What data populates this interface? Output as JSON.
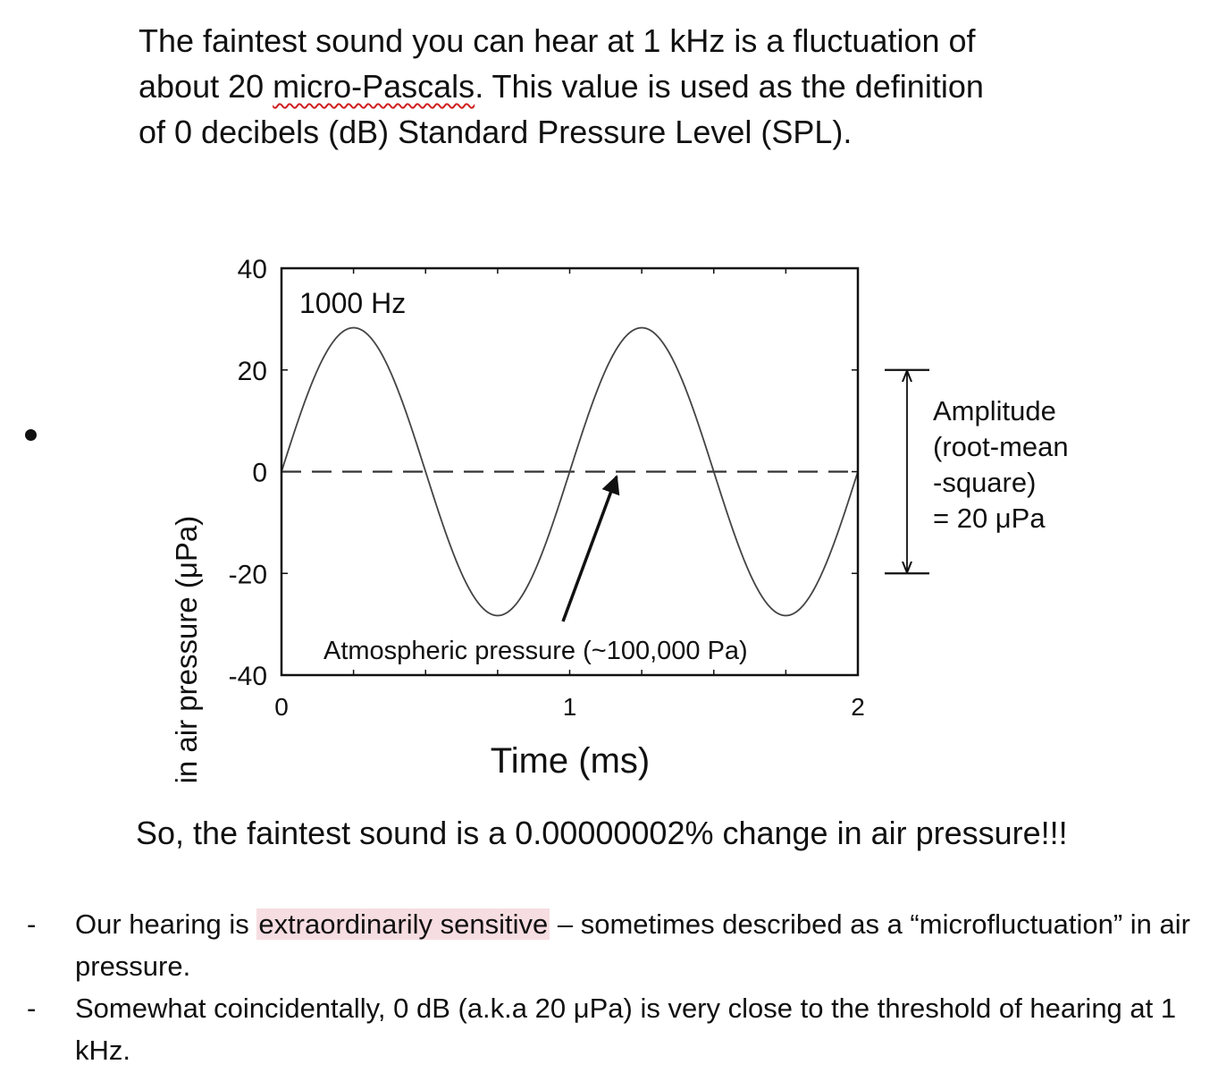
{
  "intro": {
    "line1": "The faintest sound you can hear at 1 kHz is a fluctuation of",
    "line2_a": "about 20 ",
    "line2_flagged": "micro-Pascals",
    "line2_b": ". This value is used as the definition",
    "line3": "of 0 decibels (dB) Standard Pressure Level (SPL)."
  },
  "chart_data": {
    "type": "line",
    "title": "",
    "xlabel": "Time (ms)",
    "ylabel": "Devaition in air pressure (μPa)",
    "xlim": [
      0,
      2
    ],
    "ylim": [
      -40,
      40
    ],
    "x_ticks": [
      "0",
      "1",
      "2"
    ],
    "y_ticks": [
      "40",
      "20",
      "0",
      "-20",
      "-40"
    ],
    "y_tick_values": [
      40,
      20,
      0,
      -20,
      -40
    ],
    "x_tick_values": [
      0,
      1,
      2
    ],
    "series": [
      {
        "frequency_hz": 1000,
        "peak_upa": 28.3,
        "color": "#444444"
      }
    ],
    "baseline": {
      "value": 0,
      "style": "dashed"
    },
    "annotations": {
      "frequency_label": "1000 Hz",
      "baseline_label": "Atmospheric pressure (~100,000 Pa)",
      "amplitude_range": [
        -20,
        20
      ],
      "amplitude_lines": [
        "Amplitude",
        "(root-mean",
        "-square)",
        "= 20 μPa"
      ]
    }
  },
  "conclusion": "So, the faintest sound is a 0.00000002% change in air pressure!!!",
  "notes": [
    {
      "dash": "-",
      "before": "Our hearing is ",
      "highlight": "extraordinarily sensitive",
      "after": " – sometimes described as a “microfluctuation” in air pressure."
    },
    {
      "dash": "-",
      "before": "Somewhat coincidentally, 0 dB (a.k.a 20 μPa) is very close to the threshold of hearing at 1 kHz.",
      "highlight": "",
      "after": ""
    }
  ],
  "colors": {
    "highlight": "#f6dde1",
    "spellcheck": "#d02020",
    "text": "#111111"
  }
}
